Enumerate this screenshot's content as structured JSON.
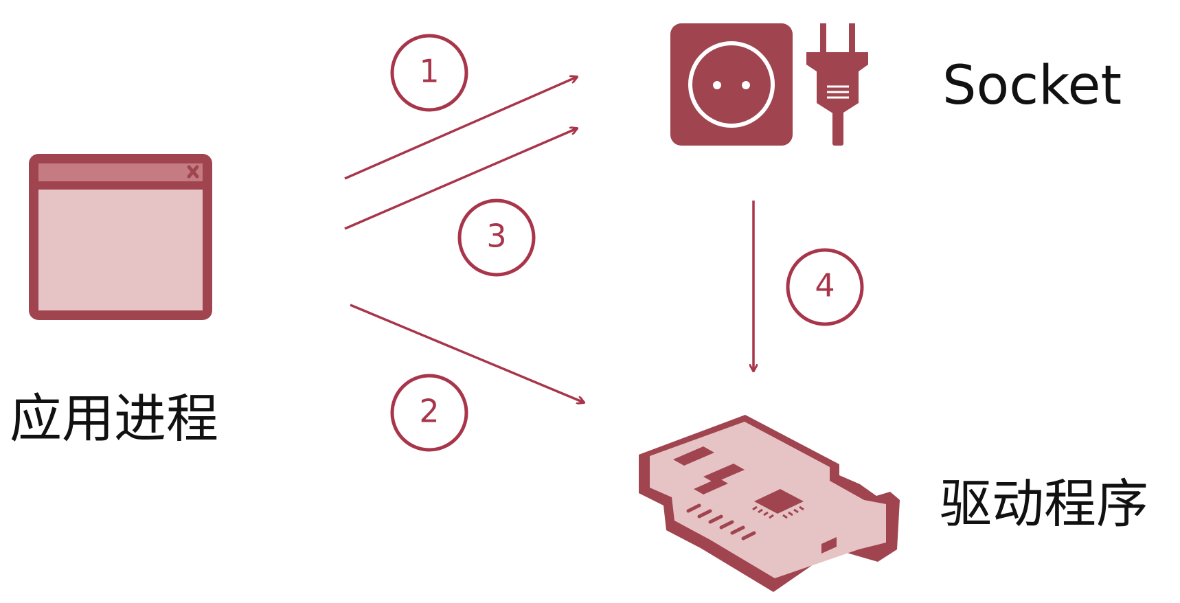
{
  "labels": {
    "app_process": "应用进程",
    "socket": "Socket",
    "driver": "驱动程序"
  },
  "steps": [
    {
      "id": "1",
      "from": "应用进程",
      "to": "Socket"
    },
    {
      "id": "2",
      "from": "应用进程",
      "to": "驱动程序"
    },
    {
      "id": "3",
      "from": "应用进程",
      "to": "Socket"
    },
    {
      "id": "4",
      "from": "Socket",
      "to": "驱动程序"
    }
  ],
  "colors": {
    "accent": "#a8354a",
    "icon_dark": "#a0444f",
    "icon_light": "#e6c3c4",
    "text": "#111111"
  },
  "icons": {
    "app_process": "window-icon",
    "socket": "power-socket-icon",
    "plug": "plug-icon",
    "driver": "network-card-icon"
  }
}
